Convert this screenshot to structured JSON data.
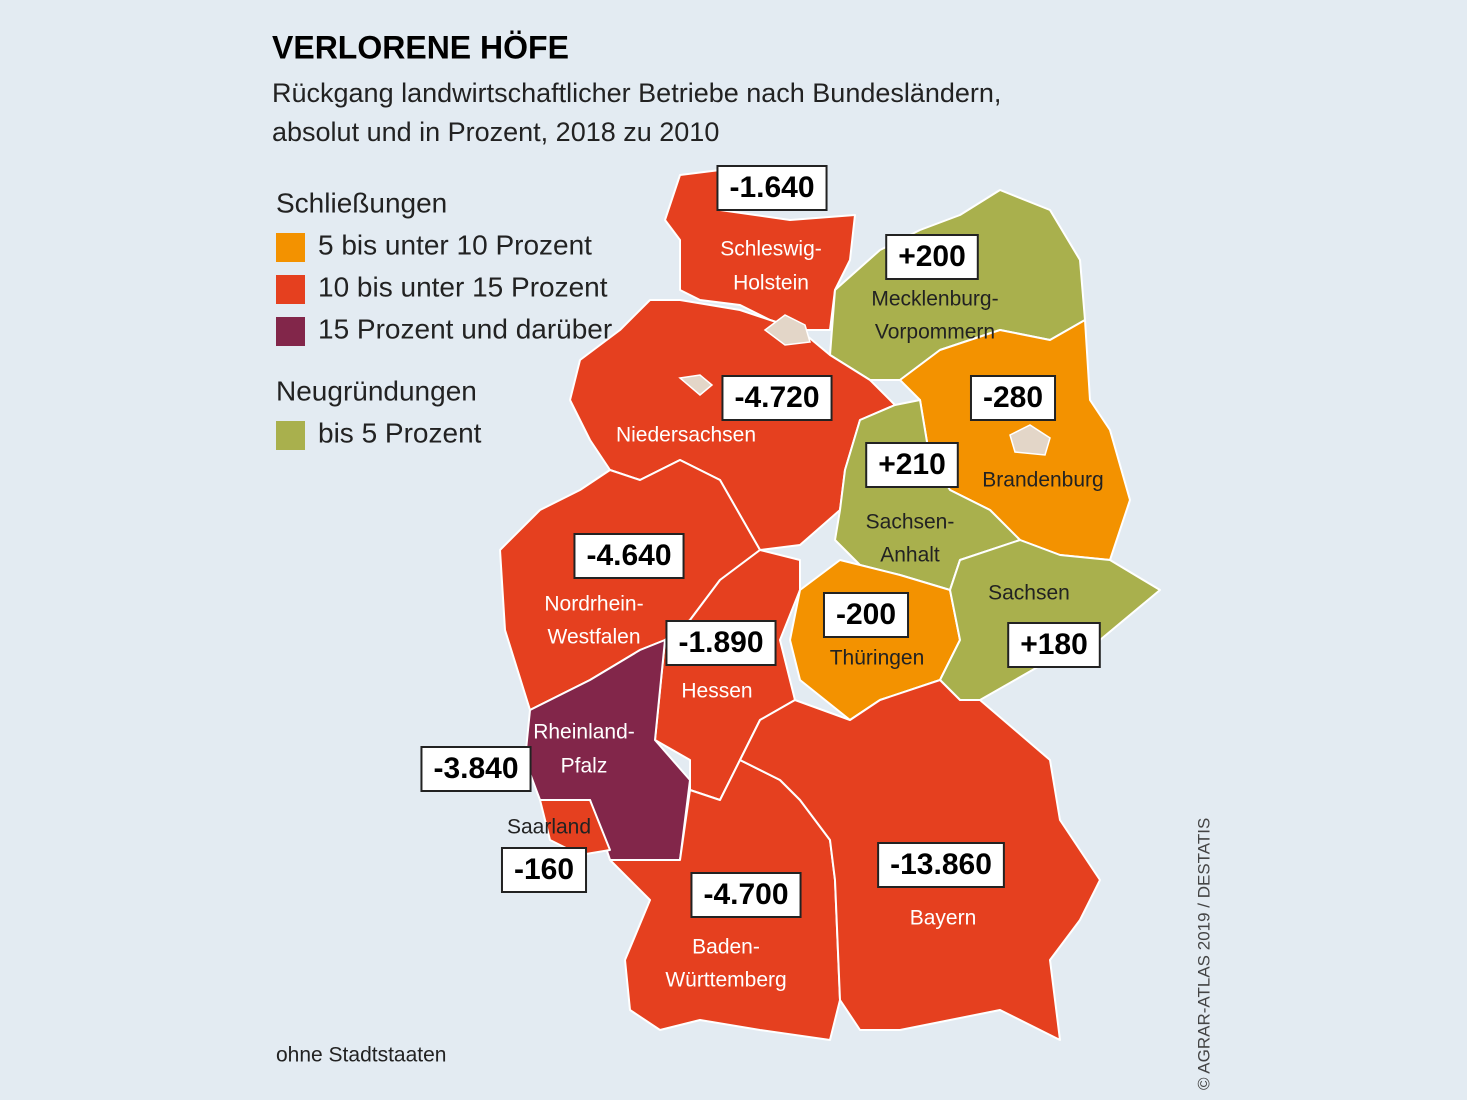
{
  "title": "VERLORENE HÖFE",
  "subtitle": [
    "Rückgang landwirtschaftlicher Betriebe nach Bundesländern,",
    "absolut und in Prozent, 2018 zu 2010"
  ],
  "legend": [
    {
      "heading": "Schließungen",
      "items": [
        {
          "label": "5 bis unter 10 Prozent",
          "color": "#f39200"
        },
        {
          "label": "10 bis unter 15 Prozent",
          "color": "#e5401f"
        },
        {
          "label": "15 Prozent und darüber",
          "color": "#82264a"
        }
      ]
    },
    {
      "heading": "Neugründungen",
      "items": [
        {
          "label": "bis 5 Prozent",
          "color": "#a9b04d"
        }
      ]
    }
  ],
  "regions": [
    {
      "name": [
        "Schleswig-",
        "Holstein"
      ],
      "change": "-1.640",
      "color": "#e5401f"
    },
    {
      "name": [
        "Mecklenburg-",
        "Vorpommern"
      ],
      "change": "+200",
      "color": "#a9b04d"
    },
    {
      "name": [
        "Niedersachsen"
      ],
      "change": "-4.720",
      "color": "#e5401f"
    },
    {
      "name": [
        "Brandenburg"
      ],
      "change": "-280",
      "color": "#f39200"
    },
    {
      "name": [
        "Sachsen-",
        "Anhalt"
      ],
      "change": "+210",
      "color": "#a9b04d"
    },
    {
      "name": [
        "Nordrhein-",
        "Westfalen"
      ],
      "change": "-4.640",
      "color": "#e5401f"
    },
    {
      "name": [
        "Hessen"
      ],
      "change": "-1.890",
      "color": "#e5401f"
    },
    {
      "name": [
        "Thüringen"
      ],
      "change": "-200",
      "color": "#f39200"
    },
    {
      "name": [
        "Sachsen"
      ],
      "change": "+180",
      "color": "#a9b04d"
    },
    {
      "name": [
        "Rheinland-",
        "Pfalz"
      ],
      "change": "-3.840",
      "color": "#82264a"
    },
    {
      "name": [
        "Saarland"
      ],
      "change": "-160",
      "color": "#e5401f"
    },
    {
      "name": [
        "Baden-",
        "Württemberg"
      ],
      "change": "-4.700",
      "color": "#e5401f"
    },
    {
      "name": [
        "Bayern"
      ],
      "change": "-13.860",
      "color": "#e5401f"
    }
  ],
  "note": "ohne Stadtstaaten",
  "credit": "© AGRAR-ATLAS 2019 / DESTATIS"
}
